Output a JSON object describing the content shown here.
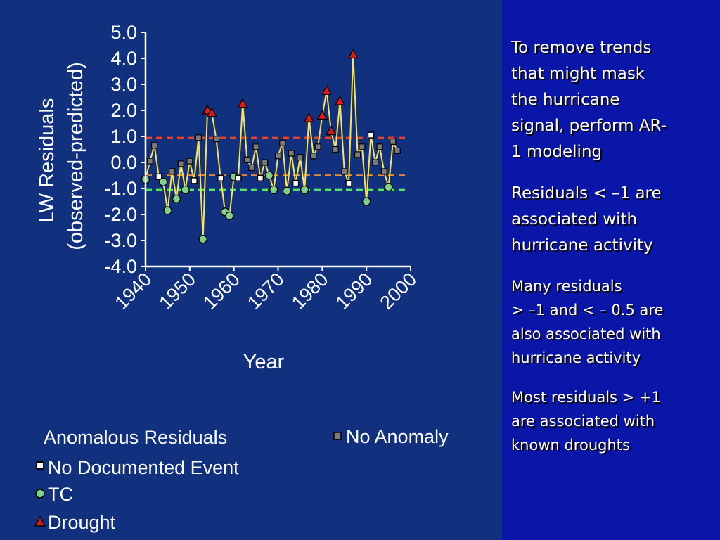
{
  "notes": {
    "trend_removal": [
      "To remove trends",
      "that might mask",
      "the hurricane",
      "signal, perform AR-",
      "1 modeling"
    ],
    "below_minus_one": [
      "Residuals < –1 are",
      "associated with",
      "hurricane activity"
    ],
    "between_thresholds": [
      "Many residuals",
      "> –1 and < – 0.5 are",
      "also associated with",
      "hurricane activity"
    ],
    "above_plus_one": [
      "Most residuals > +1",
      "are associated with",
      "known droughts"
    ]
  },
  "chart_data": {
    "type": "scatter",
    "xlabel": "Year",
    "ylabel": [
      "LW Residuals",
      "(observed-predicted)"
    ],
    "xlim": [
      1940,
      2000
    ],
    "ylim": [
      -4.0,
      5.0
    ],
    "x_ticks": [
      1940,
      1950,
      1960,
      1970,
      1980,
      1990,
      2000
    ],
    "y_ticks": [
      "5.0",
      "4.0",
      "3.0",
      "2.0",
      "1.0",
      "0.0",
      "-1.0",
      "-2.0",
      "-3.0",
      "-4.0"
    ],
    "grid": false,
    "thresholds": [
      {
        "y": 0.95,
        "color": "#e8402a"
      },
      {
        "y": -0.5,
        "color": "#f08a3a"
      },
      {
        "y": -1.05,
        "color": "#4ee860"
      }
    ],
    "line_color": "#ffe34a",
    "legend": {
      "title": "Anomalous Residuals",
      "items": [
        {
          "label": "No Anomaly",
          "marker": "square",
          "fill": "#7a7a7a"
        },
        {
          "label": "No Documented Event",
          "marker": "square",
          "fill": "#ffffff"
        },
        {
          "label": "TC",
          "marker": "circle",
          "fill": "#7fd08a"
        },
        {
          "label": "Drought",
          "marker": "triangle",
          "fill": "#d41c1c"
        }
      ]
    },
    "points": [
      {
        "x": 1940,
        "y": -0.65,
        "m": "tc"
      },
      {
        "x": 1941,
        "y": 0.05,
        "m": "none"
      },
      {
        "x": 1942,
        "y": 0.65,
        "m": "none"
      },
      {
        "x": 1943,
        "y": -0.55,
        "m": "nodoc"
      },
      {
        "x": 1944,
        "y": -0.75,
        "m": "tc"
      },
      {
        "x": 1945,
        "y": -1.85,
        "m": "tc"
      },
      {
        "x": 1946,
        "y": -0.35,
        "m": "none"
      },
      {
        "x": 1947,
        "y": -1.4,
        "m": "tc"
      },
      {
        "x": 1948,
        "y": -0.05,
        "m": "none"
      },
      {
        "x": 1949,
        "y": -1.05,
        "m": "tc"
      },
      {
        "x": 1950,
        "y": 0.05,
        "m": "none"
      },
      {
        "x": 1951,
        "y": -0.7,
        "m": "nodoc"
      },
      {
        "x": 1952,
        "y": 0.95,
        "m": "none"
      },
      {
        "x": 1953,
        "y": -2.95,
        "m": "tc"
      },
      {
        "x": 1954,
        "y": 2.0,
        "m": "drought"
      },
      {
        "x": 1955,
        "y": 1.9,
        "m": "drought"
      },
      {
        "x": 1956,
        "y": 0.9,
        "m": "none"
      },
      {
        "x": 1957,
        "y": -0.6,
        "m": "nodoc"
      },
      {
        "x": 1958,
        "y": -1.9,
        "m": "tc"
      },
      {
        "x": 1959,
        "y": -2.05,
        "m": "tc"
      },
      {
        "x": 1960,
        "y": -0.55,
        "m": "tc"
      },
      {
        "x": 1961,
        "y": -0.6,
        "m": "nodoc"
      },
      {
        "x": 1962,
        "y": 2.25,
        "m": "drought"
      },
      {
        "x": 1963,
        "y": 0.1,
        "m": "none"
      },
      {
        "x": 1964,
        "y": -0.2,
        "m": "none"
      },
      {
        "x": 1965,
        "y": 0.6,
        "m": "none"
      },
      {
        "x": 1966,
        "y": -0.6,
        "m": "nodoc"
      },
      {
        "x": 1967,
        "y": 0.0,
        "m": "none"
      },
      {
        "x": 1968,
        "y": -0.5,
        "m": "tc"
      },
      {
        "x": 1969,
        "y": -1.05,
        "m": "tc"
      },
      {
        "x": 1970,
        "y": 0.25,
        "m": "none"
      },
      {
        "x": 1971,
        "y": 0.75,
        "m": "none"
      },
      {
        "x": 1972,
        "y": -1.1,
        "m": "tc"
      },
      {
        "x": 1973,
        "y": 0.35,
        "m": "none"
      },
      {
        "x": 1974,
        "y": -0.8,
        "m": "nodoc"
      },
      {
        "x": 1975,
        "y": 0.2,
        "m": "none"
      },
      {
        "x": 1976,
        "y": -1.05,
        "m": "tc"
      },
      {
        "x": 1977,
        "y": 1.7,
        "m": "drought"
      },
      {
        "x": 1978,
        "y": 0.25,
        "m": "none"
      },
      {
        "x": 1979,
        "y": 0.6,
        "m": "none"
      },
      {
        "x": 1980,
        "y": 1.8,
        "m": "drought"
      },
      {
        "x": 1981,
        "y": 2.75,
        "m": "drought"
      },
      {
        "x": 1982,
        "y": 1.2,
        "m": "drought"
      },
      {
        "x": 1983,
        "y": 0.5,
        "m": "none"
      },
      {
        "x": 1984,
        "y": 2.35,
        "m": "drought"
      },
      {
        "x": 1985,
        "y": -0.35,
        "m": "none"
      },
      {
        "x": 1986,
        "y": -0.8,
        "m": "nodoc"
      },
      {
        "x": 1987,
        "y": 4.15,
        "m": "drought"
      },
      {
        "x": 1988,
        "y": 0.3,
        "m": "none"
      },
      {
        "x": 1989,
        "y": 0.6,
        "m": "none"
      },
      {
        "x": 1990,
        "y": -1.5,
        "m": "tc"
      },
      {
        "x": 1991,
        "y": 1.05,
        "m": "nodoc"
      },
      {
        "x": 1992,
        "y": 0.0,
        "m": "none"
      },
      {
        "x": 1993,
        "y": 0.6,
        "m": "none"
      },
      {
        "x": 1994,
        "y": -0.35,
        "m": "none"
      },
      {
        "x": 1995,
        "y": -0.95,
        "m": "tc"
      },
      {
        "x": 1996,
        "y": 0.8,
        "m": "none"
      },
      {
        "x": 1997,
        "y": 0.45,
        "m": "none"
      }
    ]
  }
}
